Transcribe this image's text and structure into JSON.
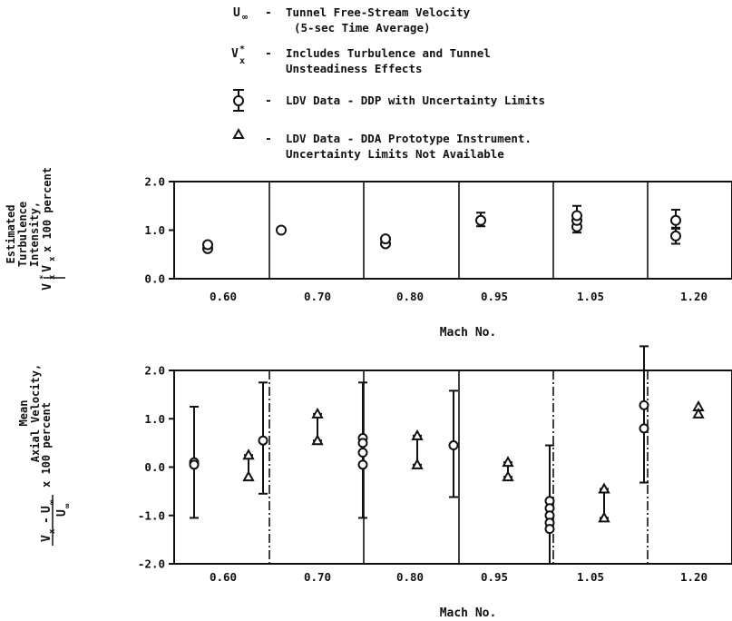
{
  "legend": {
    "items": [
      {
        "symbol": "U∞",
        "line1": "Tunnel Free-Stream Velocity",
        "line2": "(5-sec Time Average)"
      },
      {
        "symbol": "V*x",
        "line1": "Includes Turbulence and Tunnel",
        "line2": "Unsteadiness Effects"
      },
      {
        "symbol": "circle-with-error-bar",
        "line1": "LDV Data - DDP with Uncertainty Limits",
        "line2": ""
      },
      {
        "symbol": "triangle",
        "line1": "LDV Data - DDA Prototype Instrument.",
        "line2": "Uncertainty Limits Not Available"
      }
    ],
    "dash": "-"
  },
  "chart_data": [
    {
      "type": "scatter",
      "ylabel_lines": [
        "Estimated",
        "Turbulence",
        "Intensity,"
      ],
      "ylabel_formula": "V*x / V̄x × 100 percent",
      "ylabel_suffix": "x 100 percent",
      "xlabel": "Mach No.",
      "categories": [
        "0.60",
        "0.70",
        "0.80",
        "0.95",
        "1.05",
        "1.20"
      ],
      "ylim": [
        0.0,
        2.0
      ],
      "yticks": [
        "0.0",
        "1.0",
        "2.0"
      ],
      "series": [
        {
          "marker": "circle",
          "points": [
            {
              "cat": 0,
              "off": -0.15,
              "y": 0.62
            },
            {
              "cat": 0,
              "off": -0.15,
              "y": 0.7
            },
            {
              "cat": 1,
              "off": -0.1,
              "y": 1.0
            },
            {
              "cat": 2,
              "off": -0.05,
              "y": 0.72
            },
            {
              "cat": 2,
              "off": -0.05,
              "y": 0.82
            },
            {
              "cat": 3,
              "off": 0.0,
              "y": 1.2,
              "lo": 1.08,
              "hi": 1.36
            },
            {
              "cat": 4,
              "off": 0.0,
              "y": 1.07,
              "lo": 0.95,
              "hi": 1.5
            },
            {
              "cat": 4,
              "off": 0.0,
              "y": 1.2
            },
            {
              "cat": 4,
              "off": 0.0,
              "y": 1.3
            },
            {
              "cat": 5,
              "off": 0.05,
              "y": 0.88,
              "lo": 0.72,
              "hi": 1.05
            },
            {
              "cat": 5,
              "off": 0.05,
              "y": 1.2,
              "lo": 1.03,
              "hi": 1.42
            }
          ]
        }
      ]
    },
    {
      "type": "scatter",
      "ylabel_lines": [
        "Mean",
        "Axial Velocity,"
      ],
      "ylabel_formula": "[(V̄x − U∞) / U∞] × 100 percent",
      "ylabel_suffix": "x 100 percent",
      "xlabel": "Mach No.",
      "categories": [
        "0.60",
        "0.70",
        "0.80",
        "0.95",
        "1.05",
        "1.20"
      ],
      "ylim": [
        -2.0,
        2.0
      ],
      "yticks": [
        "-2.0",
        "-1.0",
        "0.0",
        "1.0",
        "2.0"
      ],
      "series": [
        {
          "name": "LDV Data - DDP",
          "marker": "circle",
          "points": [
            {
              "cat": 0,
              "off": -0.3,
              "y": 0.1,
              "lo": -1.05,
              "hi": 1.25
            },
            {
              "cat": 0,
              "off": -0.3,
              "y": 0.05
            },
            {
              "cat": 1,
              "off": -0.3,
              "y": 0.55,
              "lo": -0.55,
              "hi": 1.75
            },
            {
              "cat": 2,
              "off": -0.3,
              "y": 0.6,
              "lo": -1.05,
              "hi": 1.75
            },
            {
              "cat": 2,
              "off": -0.3,
              "y": 0.5
            },
            {
              "cat": 2,
              "off": -0.3,
              "y": 0.3
            },
            {
              "cat": 2,
              "off": -0.3,
              "y": 0.05
            },
            {
              "cat": 3,
              "off": -0.3,
              "y": 0.45,
              "lo": -0.62,
              "hi": 1.58
            },
            {
              "cat": 4,
              "off": -0.3,
              "y": -0.7,
              "lo": -2.0,
              "hi": 0.45
            },
            {
              "cat": 4,
              "off": -0.3,
              "y": -0.85
            },
            {
              "cat": 4,
              "off": -0.3,
              "y": -1.0
            },
            {
              "cat": 4,
              "off": -0.3,
              "y": -1.15
            },
            {
              "cat": 4,
              "off": -0.3,
              "y": -1.28
            },
            {
              "cat": 5,
              "off": -0.3,
              "y": 1.28,
              "lo": -0.32,
              "hi": 2.5
            },
            {
              "cat": 5,
              "off": -0.3,
              "y": 0.8
            }
          ]
        },
        {
          "name": "LDV Data - DDA",
          "marker": "triangle",
          "points": [
            {
              "cat": 0,
              "off": 0.3,
              "y": 0.25,
              "lo": -0.25,
              "hi": 0.25
            },
            {
              "cat": 0,
              "off": 0.3,
              "y": -0.2
            },
            {
              "cat": 1,
              "off": 0.3,
              "y": 1.1,
              "lo": 0.55,
              "hi": 1.1
            },
            {
              "cat": 1,
              "off": 0.3,
              "y": 0.55
            },
            {
              "cat": 2,
              "off": 0.3,
              "y": 0.65,
              "lo": 0.05,
              "hi": 0.65
            },
            {
              "cat": 2,
              "off": 0.3,
              "y": 0.05
            },
            {
              "cat": 3,
              "off": 0.3,
              "y": 0.1,
              "lo": -0.2,
              "hi": 0.1
            },
            {
              "cat": 3,
              "off": 0.3,
              "y": -0.2
            },
            {
              "cat": 4,
              "off": 0.3,
              "y": -0.45,
              "lo": -1.05,
              "hi": -0.45
            },
            {
              "cat": 4,
              "off": 0.3,
              "y": -1.05
            },
            {
              "cat": 5,
              "off": 0.3,
              "y": 1.25
            },
            {
              "cat": 5,
              "off": 0.3,
              "y": 1.1
            }
          ]
        }
      ]
    }
  ]
}
